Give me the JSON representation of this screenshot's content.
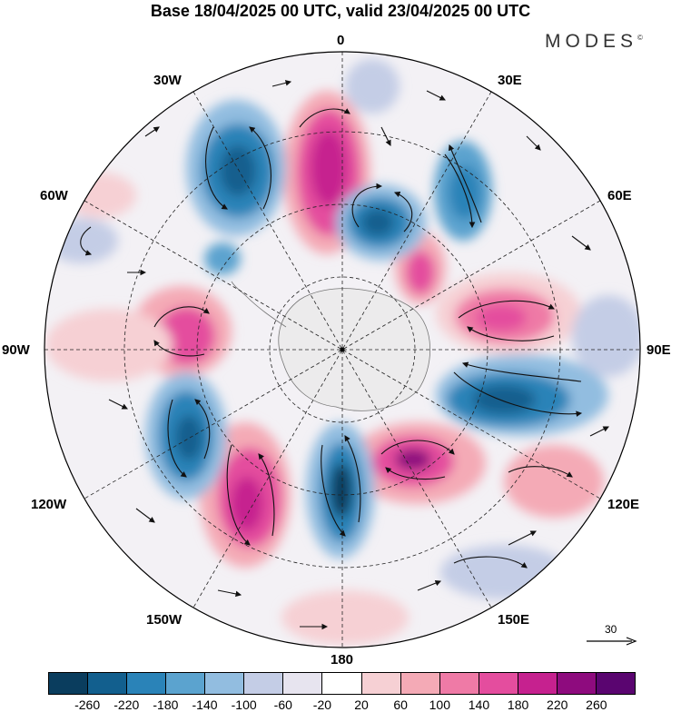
{
  "title": "Base 18/04/2025 00 UTC, valid 23/04/2025 00 UTC",
  "brand": "MODES",
  "brand_mark": "©",
  "longitude_labels": {
    "lon_0": "0",
    "lon_30e": "30E",
    "lon_60e": "60E",
    "lon_90e": "90E",
    "lon_120e": "120E",
    "lon_150e": "150E",
    "lon_180": "180",
    "lon_150w": "150W",
    "lon_120w": "120W",
    "lon_90w": "90W",
    "lon_60w": "60W",
    "lon_30w": "30W"
  },
  "reference_vector": "30",
  "colorbar": {
    "colors": [
      "#0a3d5e",
      "#125f8e",
      "#2a83b8",
      "#5ba3cf",
      "#92bde0",
      "#c4cde6",
      "#e7e4ef",
      "#ffffff",
      "#f6d0d4",
      "#f4aab6",
      "#ef7aa6",
      "#e44d9e",
      "#c6218f",
      "#8e0b7e",
      "#5a0570"
    ],
    "ticks": [
      "-260",
      "-220",
      "-180",
      "-140",
      "-100",
      "-60",
      "-20",
      "20",
      "60",
      "100",
      "140",
      "180",
      "220",
      "260"
    ]
  }
}
